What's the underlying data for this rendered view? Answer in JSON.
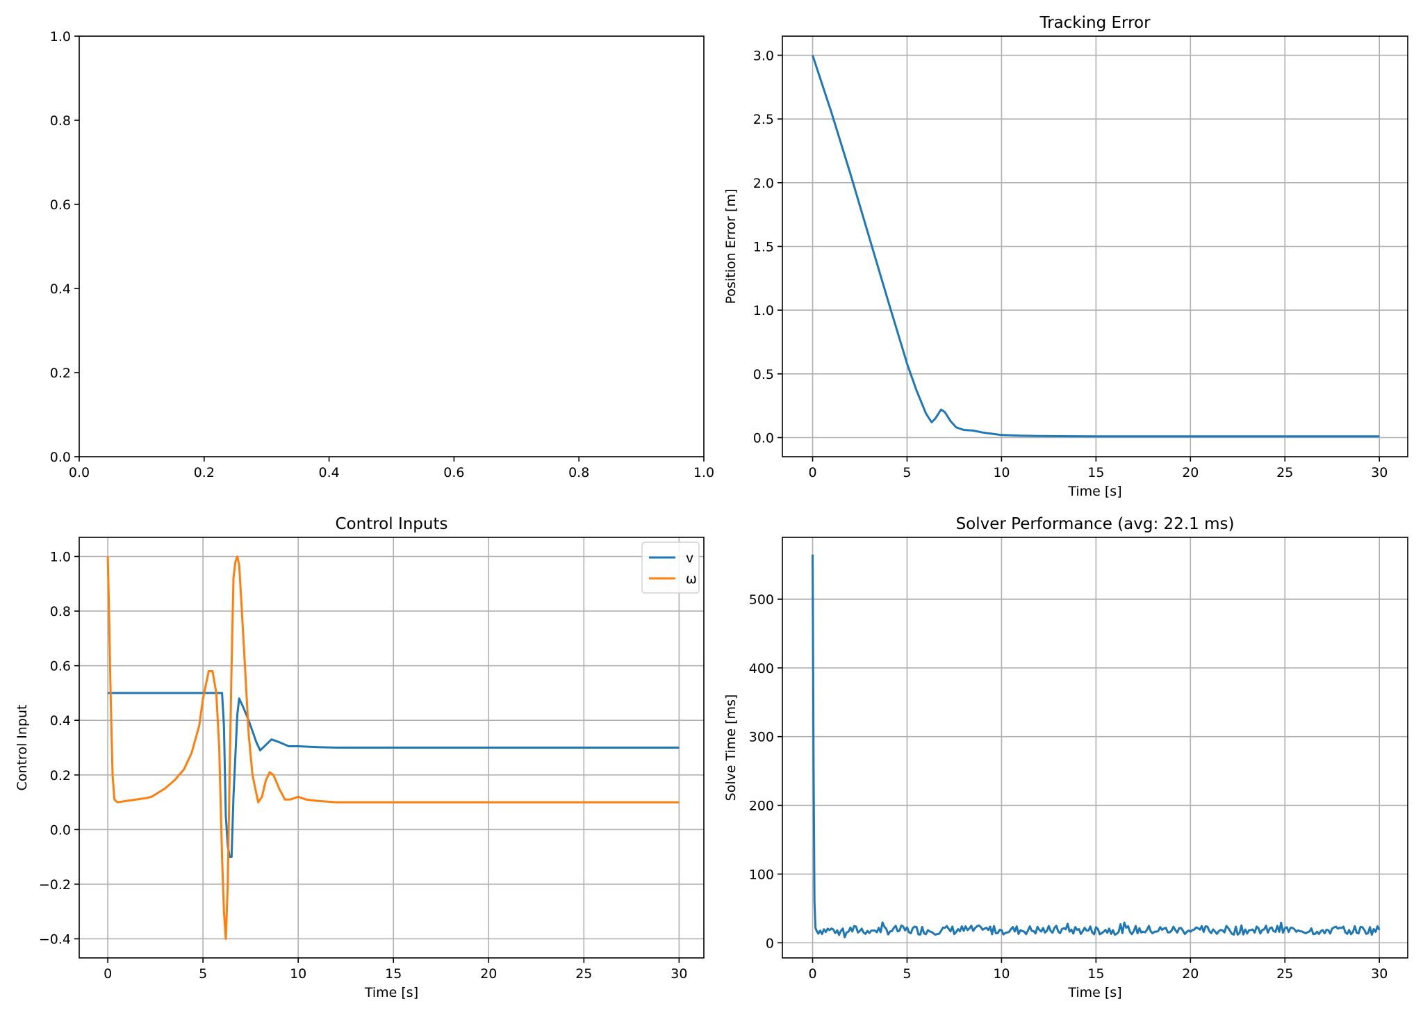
{
  "chart_data": [
    {
      "id": "empty",
      "type": "line",
      "title": "",
      "xlabel": "",
      "ylabel": "",
      "xlim": [
        0,
        1
      ],
      "ylim": [
        0,
        1
      ],
      "grid": false,
      "xticks": [
        0,
        0.2,
        0.4,
        0.6,
        0.8,
        1.0
      ],
      "xtick_labels": [
        "0.0",
        "0.2",
        "0.4",
        "0.6",
        "0.8",
        "1.0"
      ],
      "yticks": [
        0,
        0.2,
        0.4,
        0.6,
        0.8,
        1.0
      ],
      "ytick_labels": [
        "0.0",
        "0.2",
        "0.4",
        "0.6",
        "0.8",
        "1.0"
      ],
      "series": []
    },
    {
      "id": "tracking",
      "type": "line",
      "title": "Tracking Error",
      "xlabel": "Time [s]",
      "ylabel": "Position Error [m]",
      "xlim": [
        -1.6,
        31.5
      ],
      "ylim": [
        -0.15,
        3.15
      ],
      "grid": true,
      "xticks": [
        0,
        5,
        10,
        15,
        20,
        25,
        30
      ],
      "xtick_labels": [
        "0",
        "5",
        "10",
        "15",
        "20",
        "25",
        "30"
      ],
      "yticks": [
        0,
        0.5,
        1.0,
        1.5,
        2.0,
        2.5,
        3.0
      ],
      "ytick_labels": [
        "0.0",
        "0.5",
        "1.0",
        "1.5",
        "2.0",
        "2.5",
        "3.0"
      ],
      "series": [
        {
          "color": "#1f77b4",
          "x": [
            0,
            1,
            2,
            3,
            4,
            5,
            5.5,
            6.0,
            6.3,
            6.5,
            6.8,
            7.0,
            7.3,
            7.6,
            8.0,
            8.5,
            9.0,
            9.5,
            10,
            11,
            12,
            15,
            20,
            25,
            30
          ],
          "y": [
            3.0,
            2.55,
            2.07,
            1.57,
            1.07,
            0.58,
            0.37,
            0.19,
            0.12,
            0.15,
            0.22,
            0.2,
            0.13,
            0.08,
            0.06,
            0.055,
            0.04,
            0.03,
            0.02,
            0.015,
            0.012,
            0.01,
            0.01,
            0.01,
            0.01
          ]
        }
      ]
    },
    {
      "id": "control",
      "type": "line",
      "title": "Control Inputs",
      "xlabel": "Time [s]",
      "ylabel": "Control Input",
      "xlim": [
        -1.5,
        31.3
      ],
      "ylim": [
        -0.47,
        1.07
      ],
      "grid": true,
      "legend": "top-right",
      "xticks": [
        0,
        5,
        10,
        15,
        20,
        25,
        30
      ],
      "xtick_labels": [
        "0",
        "5",
        "10",
        "15",
        "20",
        "25",
        "30"
      ],
      "yticks": [
        -0.4,
        -0.2,
        0,
        0.2,
        0.4,
        0.6,
        0.8,
        1.0
      ],
      "ytick_labels": [
        "−0.4",
        "−0.2",
        "0.0",
        "0.2",
        "0.4",
        "0.6",
        "0.8",
        "1.0"
      ],
      "series": [
        {
          "name": "v",
          "color": "#1f77b4",
          "x": [
            0,
            5.9,
            6.0,
            6.1,
            6.2,
            6.3,
            6.4,
            6.5,
            6.6,
            6.8,
            6.9,
            7.1,
            7.4,
            7.8,
            8.0,
            8.3,
            8.6,
            9.0,
            9.5,
            10,
            11,
            12,
            30
          ],
          "y": [
            0.5,
            0.5,
            0.5,
            0.38,
            0.05,
            -0.06,
            -0.1,
            -0.1,
            0.12,
            0.42,
            0.48,
            0.45,
            0.4,
            0.32,
            0.29,
            0.31,
            0.33,
            0.32,
            0.305,
            0.305,
            0.302,
            0.3,
            0.3
          ]
        },
        {
          "name": "ω",
          "color": "#ff7f0e",
          "x": [
            0,
            0.05,
            0.15,
            0.25,
            0.35,
            0.5,
            1.0,
            1.5,
            2.0,
            2.3,
            3.0,
            3.5,
            4.0,
            4.4,
            4.8,
            5.0,
            5.3,
            5.5,
            5.7,
            5.85,
            6.0,
            6.1,
            6.2,
            6.3,
            6.4,
            6.5,
            6.6,
            6.7,
            6.8,
            6.9,
            7.0,
            7.2,
            7.4,
            7.6,
            7.9,
            8.1,
            8.3,
            8.5,
            8.7,
            9.0,
            9.3,
            9.6,
            10,
            10.4,
            11,
            12,
            13,
            14,
            15,
            20,
            25,
            30
          ],
          "y": [
            1.0,
            0.85,
            0.5,
            0.2,
            0.11,
            0.1,
            0.105,
            0.11,
            0.115,
            0.12,
            0.15,
            0.18,
            0.22,
            0.28,
            0.38,
            0.48,
            0.58,
            0.58,
            0.5,
            0.3,
            -0.1,
            -0.3,
            -0.4,
            -0.2,
            0.2,
            0.6,
            0.92,
            0.98,
            1.0,
            0.97,
            0.85,
            0.6,
            0.35,
            0.2,
            0.1,
            0.12,
            0.18,
            0.21,
            0.2,
            0.15,
            0.11,
            0.11,
            0.12,
            0.11,
            0.105,
            0.1,
            0.1,
            0.1,
            0.1,
            0.1,
            0.1,
            0.1
          ]
        }
      ]
    },
    {
      "id": "solver",
      "type": "line",
      "title": "Solver Performance (avg: 22.1 ms)",
      "xlabel": "Time [s]",
      "ylabel": "Solve Time [ms]",
      "xlim": [
        -1.6,
        31.5
      ],
      "ylim": [
        -22,
        590
      ],
      "grid": true,
      "xticks": [
        0,
        5,
        10,
        15,
        20,
        25,
        30
      ],
      "xtick_labels": [
        "0",
        "5",
        "10",
        "15",
        "20",
        "25",
        "30"
      ],
      "yticks": [
        0,
        100,
        200,
        300,
        400,
        500
      ],
      "ytick_labels": [
        "0",
        "100",
        "200",
        "300",
        "400",
        "500"
      ],
      "series": [
        {
          "color": "#1f77b4",
          "noise": {
            "start": 0.2,
            "end": 30,
            "step": 0.1,
            "base": 18.5,
            "amplitude": 9
          },
          "x": [
            0,
            0.05,
            0.1,
            0.15
          ],
          "y": [
            565,
            260,
            60,
            22
          ]
        }
      ]
    }
  ]
}
